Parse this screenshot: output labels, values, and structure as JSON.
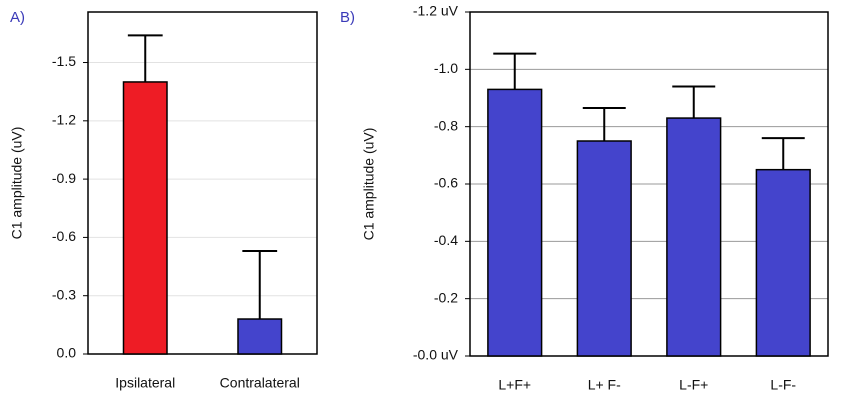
{
  "chart_data": [
    {
      "type": "bar",
      "panel_label": "A)",
      "y_label": "C1 amplitude (uV)",
      "categories": [
        "Ipsilateral",
        "Contralateral"
      ],
      "values": [
        -1.4,
        -0.18
      ],
      "errors": [
        0.24,
        0.35
      ],
      "colors": [
        "#ee1c25",
        "#4444cc"
      ],
      "ylim": [
        0,
        -1.76
      ],
      "yticks": [
        {
          "value": 0,
          "label": "0.0"
        },
        -0.3,
        -0.6,
        -0.9,
        -1.2,
        -1.5
      ],
      "grid": true
    },
    {
      "type": "bar",
      "panel_label": "B)",
      "y_label": "C1 amplitude (uV)",
      "categories": [
        "L+F+",
        "L+ F-",
        "L-F+",
        "L-F-"
      ],
      "values": [
        -0.93,
        -0.75,
        -0.83,
        -0.65
      ],
      "errors": [
        0.125,
        0.115,
        0.11,
        0.11
      ],
      "colors": [
        "#4444cc",
        "#4444cc",
        "#4444cc",
        "#4444cc"
      ],
      "ylim": [
        0,
        -1.2
      ],
      "yticks": [
        {
          "value": 0,
          "label": "-0.0 uV"
        },
        -0.2,
        -0.4,
        -0.6,
        -0.8,
        {
          "value": -1,
          "label": "-1.0"
        },
        {
          "value": -1.2,
          "label": "-1.2 uV"
        }
      ],
      "grid": true
    }
  ]
}
